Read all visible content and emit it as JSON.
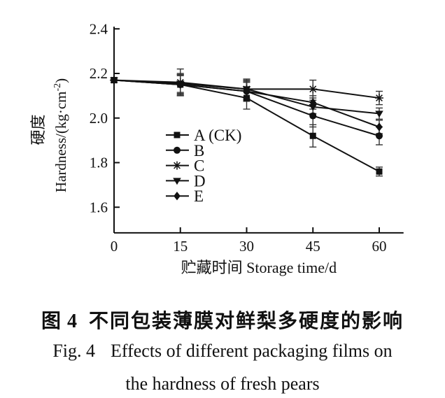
{
  "chart_data": {
    "type": "line",
    "x": [
      0,
      15,
      30,
      45,
      60
    ],
    "xticks": [
      "0",
      "15",
      "30",
      "45",
      "60"
    ],
    "yticks": [
      "1.6",
      "1.8",
      "2.0",
      "2.2",
      "2.4"
    ],
    "xlim": [
      0,
      65.5
    ],
    "ylim": [
      1.485,
      2.41
    ],
    "grid": false,
    "xlabel": "贮藏时间 Storage time/d",
    "ylabel_zh": "硬度",
    "ylabel_en": "Hardness/(kg·cm⁻²)",
    "legend_position": "inside-center-left",
    "color": "#111111",
    "background": "#ffffff",
    "series": [
      {
        "name": "A (CK)",
        "marker": "square",
        "values": [
          2.17,
          2.15,
          2.09,
          1.92,
          1.76
        ],
        "errors": [
          0.01,
          0.045,
          0.05,
          0.05,
          0.02
        ]
      },
      {
        "name": "B",
        "marker": "circle",
        "values": [
          2.17,
          2.15,
          2.12,
          2.01,
          1.92
        ],
        "errors": [
          0.01,
          0.05,
          0.045,
          0.05,
          0.04
        ]
      },
      {
        "name": "C",
        "marker": "asterisk",
        "values": [
          2.17,
          2.16,
          2.13,
          2.13,
          2.09
        ],
        "errors": [
          0.01,
          0.06,
          0.045,
          0.04,
          0.03
        ]
      },
      {
        "name": "D",
        "marker": "triangle-down",
        "values": [
          2.17,
          2.155,
          2.13,
          2.05,
          2.02
        ],
        "errors": [
          0.01,
          0.04,
          0.04,
          0.03,
          0.025
        ]
      },
      {
        "name": "E",
        "marker": "diamond",
        "values": [
          2.17,
          2.15,
          2.12,
          2.07,
          1.96
        ],
        "errors": [
          0.01,
          0.04,
          0.04,
          0.03,
          0.03
        ]
      }
    ]
  },
  "caption": {
    "zh_label": "图 4",
    "zh_title": "不同包装薄膜对鲜梨多硬度的影响",
    "en_label": "Fig. 4",
    "en_line1": "Effects of different packaging films on",
    "en_line2": "the hardness of fresh pears"
  }
}
